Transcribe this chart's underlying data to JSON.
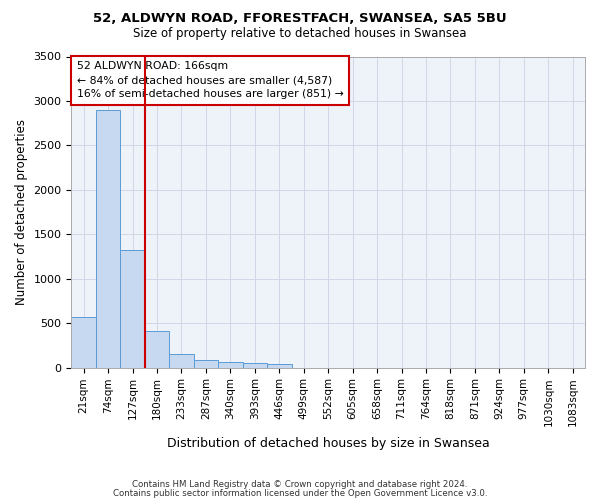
{
  "title1": "52, ALDWYN ROAD, FFORESTFACH, SWANSEA, SA5 5BU",
  "title2": "Size of property relative to detached houses in Swansea",
  "xlabel": "Distribution of detached houses by size in Swansea",
  "ylabel": "Number of detached properties",
  "footer1": "Contains HM Land Registry data © Crown copyright and database right 2024.",
  "footer2": "Contains public sector information licensed under the Open Government Licence v3.0.",
  "bin_labels": [
    "21sqm",
    "74sqm",
    "127sqm",
    "180sqm",
    "233sqm",
    "287sqm",
    "340sqm",
    "393sqm",
    "446sqm",
    "499sqm",
    "552sqm",
    "605sqm",
    "658sqm",
    "711sqm",
    "764sqm",
    "818sqm",
    "871sqm",
    "924sqm",
    "977sqm",
    "1030sqm",
    "1083sqm"
  ],
  "bar_heights": [
    570,
    2900,
    1320,
    410,
    155,
    80,
    58,
    55,
    45,
    0,
    0,
    0,
    0,
    0,
    0,
    0,
    0,
    0,
    0,
    0,
    0
  ],
  "bar_color": "#c7d9f0",
  "bar_edge_color": "#5b9bd5",
  "grid_color": "#d0d8e8",
  "background_color": "#eef2f9",
  "annotation_text": "52 ALDWYN ROAD: 166sqm\n← 84% of detached houses are smaller (4,587)\n16% of semi-detached houses are larger (851) →",
  "annotation_box_color": "#ffffff",
  "annotation_edge_color": "#cc0000",
  "red_line_color": "#cc0000",
  "red_line_x": 2.5,
  "ylim": [
    0,
    3500
  ],
  "yticks": [
    0,
    500,
    1000,
    1500,
    2000,
    2500,
    3000,
    3500
  ]
}
